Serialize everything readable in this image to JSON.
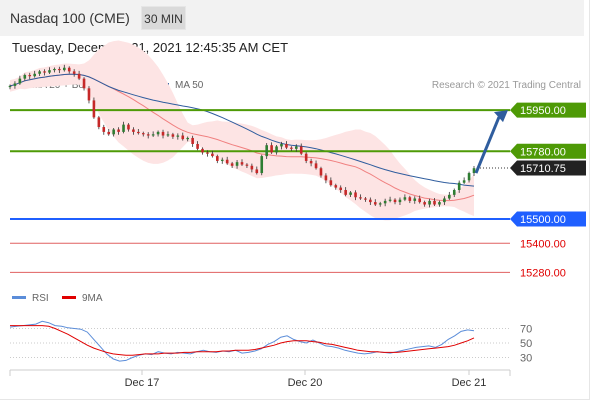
{
  "header": {
    "instrument": "Nasdaq 100 (CME)",
    "timeframe": "30 MIN"
  },
  "datetime": "Tuesday, December 21, 2021 12:45:35 AM CET",
  "legend": [
    {
      "label": "MA 20 + Bollinger Bands",
      "color": "#f08080"
    },
    {
      "label": "MA 50",
      "color": "#2f5d9e"
    }
  ],
  "copyright": "Research © 2021 Trading Central",
  "rsi_legend": [
    {
      "label": "RSI",
      "color": "#5b8dd9"
    },
    {
      "label": "9MA",
      "color": "#e00000"
    }
  ],
  "colors": {
    "resistance": "#4e9a06",
    "pivot": "#1f5fff",
    "support": "#e06060",
    "arrow": "#2f5d9e"
  },
  "chart_data": [
    {
      "type": "candlestick",
      "price_range": [
        15240,
        16000
      ],
      "levels": [
        {
          "value": 15950,
          "label": "15950.00",
          "kind": "resistance"
        },
        {
          "value": 15780,
          "label": "15780.00",
          "kind": "resistance"
        },
        {
          "value": 15500,
          "label": "15500.00",
          "kind": "pivot"
        },
        {
          "value": 15400,
          "label": "15400.00",
          "kind": "support"
        },
        {
          "value": 15280,
          "label": "15280.00",
          "kind": "support"
        }
      ],
      "current_price": {
        "value": 15710.75,
        "label": "15710.75"
      },
      "x_ticks": [
        "Dec 17",
        "Dec 20",
        "Dec 21"
      ],
      "close": [
        16050,
        16060,
        16080,
        16095,
        16090,
        16100,
        16110,
        16105,
        16115,
        16120,
        16115,
        16125,
        16110,
        16100,
        16080,
        16040,
        15990,
        15920,
        15880,
        15860,
        15850,
        15870,
        15860,
        15890,
        15870,
        15860,
        15855,
        15850,
        15845,
        15850,
        15860,
        15845,
        15850,
        15840,
        15845,
        15830,
        15835,
        15810,
        15790,
        15775,
        15770,
        15760,
        15740,
        15745,
        15730,
        15720,
        15735,
        15725,
        15720,
        15705,
        15690,
        15760,
        15805,
        15775,
        15800,
        15810,
        15795,
        15790,
        15800,
        15770,
        15740,
        15730,
        15710,
        15680,
        15660,
        15640,
        15630,
        15620,
        15600,
        15610,
        15590,
        15585,
        15580,
        15570,
        15560,
        15565,
        15575,
        15580,
        15570,
        15580,
        15590,
        15575,
        15585,
        15570,
        15560,
        15575,
        15560,
        15570,
        15585,
        15600,
        15620,
        15650,
        15660,
        15690,
        15710
      ]
    },
    {
      "type": "line",
      "title": "RSI",
      "y_ticks": [
        70,
        50,
        30
      ],
      "ylim": [
        10,
        90
      ],
      "series": [
        {
          "name": "RSI",
          "values": [
            72,
            73,
            74,
            75,
            76,
            80,
            78,
            74,
            73,
            71,
            70,
            69,
            65,
            55,
            45,
            35,
            28,
            25,
            26,
            30,
            33,
            35,
            34,
            38,
            36,
            35,
            37,
            36,
            35,
            38,
            40,
            38,
            37,
            39,
            38,
            40,
            36,
            37,
            39,
            42,
            48,
            52,
            58,
            60,
            55,
            52,
            50,
            54,
            50,
            46,
            45,
            43,
            40,
            38,
            36,
            35,
            36,
            38,
            37,
            36,
            38,
            40,
            42,
            44,
            45,
            46,
            44,
            48,
            55,
            60,
            66,
            68,
            67
          ]
        },
        {
          "name": "9MA",
          "values": [
            74,
            74,
            74,
            74,
            74,
            74,
            73,
            70,
            66,
            62,
            57,
            52,
            47,
            43,
            40,
            37,
            35,
            34,
            33,
            33,
            34,
            35,
            35,
            35,
            36,
            36,
            36,
            37,
            37,
            38,
            38,
            38,
            38,
            39,
            39,
            40,
            40,
            40,
            41,
            43,
            45,
            47,
            50,
            52,
            53,
            53,
            53,
            52,
            51,
            49,
            48,
            46,
            44,
            42,
            40,
            39,
            38,
            38,
            37,
            37,
            37,
            38,
            39,
            40,
            41,
            42,
            43,
            44,
            45,
            47,
            50,
            53,
            57
          ]
        }
      ]
    }
  ]
}
